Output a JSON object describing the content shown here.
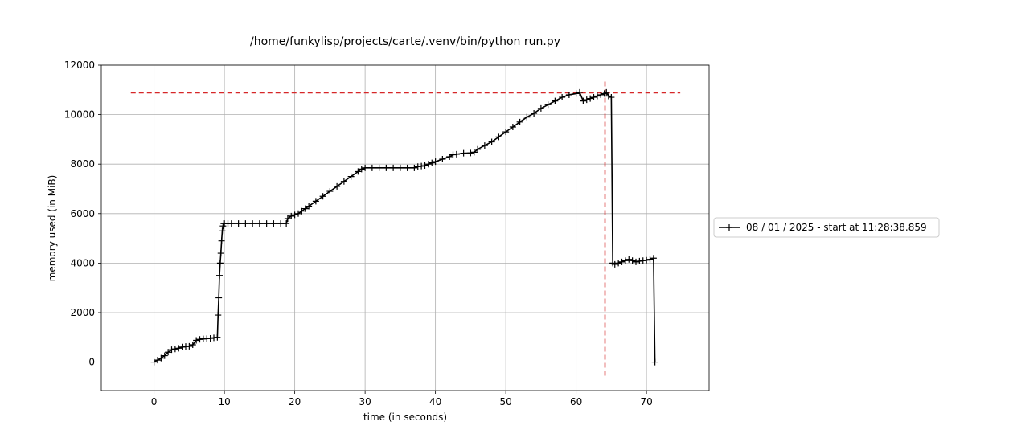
{
  "chart_data": {
    "type": "line",
    "title": "/home/funkylisp/projects/carte/.venv/bin/python run.py",
    "xlabel": "time (in seconds)",
    "ylabel": "memory used (in MiB)",
    "xlim": [
      -7.5,
      78.9
    ],
    "ylim": [
      -1150,
      12000
    ],
    "xticks": [
      0,
      10,
      20,
      30,
      40,
      50,
      60,
      70
    ],
    "yticks": [
      0,
      2000,
      4000,
      6000,
      8000,
      10000,
      12000
    ],
    "grid": true,
    "legend_position": "right",
    "series": [
      {
        "name": "08 / 01 / 2025 - start at 11:28:38.859",
        "color": "#000000",
        "marker": "+",
        "x": [
          0,
          0.5,
          1,
          1.5,
          2,
          2.5,
          3,
          3.5,
          4,
          4.5,
          5,
          5.5,
          6,
          6.5,
          7,
          7.5,
          8,
          8.5,
          9,
          9.1,
          9.2,
          9.3,
          9.4,
          9.5,
          9.6,
          9.7,
          9.8,
          9.9,
          10,
          10.5,
          11,
          12,
          13,
          14,
          15,
          16,
          17,
          18,
          18.8,
          19,
          19.5,
          20,
          20.5,
          21,
          21.5,
          22,
          23,
          24,
          25,
          26,
          27,
          28,
          29,
          29.5,
          30,
          31,
          32,
          33,
          34,
          35,
          36,
          37,
          37.5,
          38,
          38.5,
          39,
          39.5,
          40,
          41,
          42,
          42.5,
          43,
          44,
          45,
          45.5,
          46,
          47,
          48,
          49,
          50,
          51,
          52,
          53,
          54,
          55,
          56,
          57,
          58,
          59,
          60,
          60.5,
          61,
          61.5,
          62,
          62.5,
          63,
          63.5,
          64,
          64.3,
          64.6,
          65,
          65.2,
          65.5,
          66,
          66.5,
          67,
          67.5,
          68,
          68.5,
          69,
          69.5,
          70,
          70.5,
          71,
          71.2
        ],
        "y": [
          0,
          80,
          160,
          260,
          400,
          500,
          530,
          560,
          610,
          630,
          640,
          700,
          880,
          920,
          940,
          950,
          960,
          980,
          1000,
          1900,
          2600,
          3500,
          4000,
          4400,
          4900,
          5300,
          5500,
          5600,
          5600,
          5600,
          5600,
          5600,
          5600,
          5600,
          5600,
          5600,
          5600,
          5600,
          5600,
          5800,
          5900,
          5950,
          6000,
          6100,
          6200,
          6300,
          6500,
          6700,
          6900,
          7100,
          7300,
          7500,
          7700,
          7800,
          7850,
          7850,
          7850,
          7850,
          7850,
          7850,
          7850,
          7850,
          7900,
          7920,
          7940,
          8000,
          8050,
          8100,
          8200,
          8300,
          8380,
          8400,
          8440,
          8450,
          8480,
          8600,
          8750,
          8900,
          9100,
          9300,
          9500,
          9700,
          9900,
          10050,
          10250,
          10400,
          10550,
          10700,
          10800,
          10850,
          10900,
          10550,
          10600,
          10650,
          10700,
          10750,
          10800,
          10850,
          10900,
          10750,
          10700,
          4000,
          3950,
          4000,
          4050,
          4100,
          4150,
          4100,
          4050,
          4080,
          4100,
          4120,
          4150,
          4200,
          0
        ]
      }
    ],
    "reference_lines": [
      {
        "orientation": "horizontal",
        "value": 10880,
        "from": -3.3,
        "to": 74.8,
        "color": "#d62728",
        "style": "dashed"
      },
      {
        "orientation": "vertical",
        "value": 64.1,
        "from": -550,
        "to": 11450,
        "color": "#d62728",
        "style": "dashed"
      }
    ]
  }
}
